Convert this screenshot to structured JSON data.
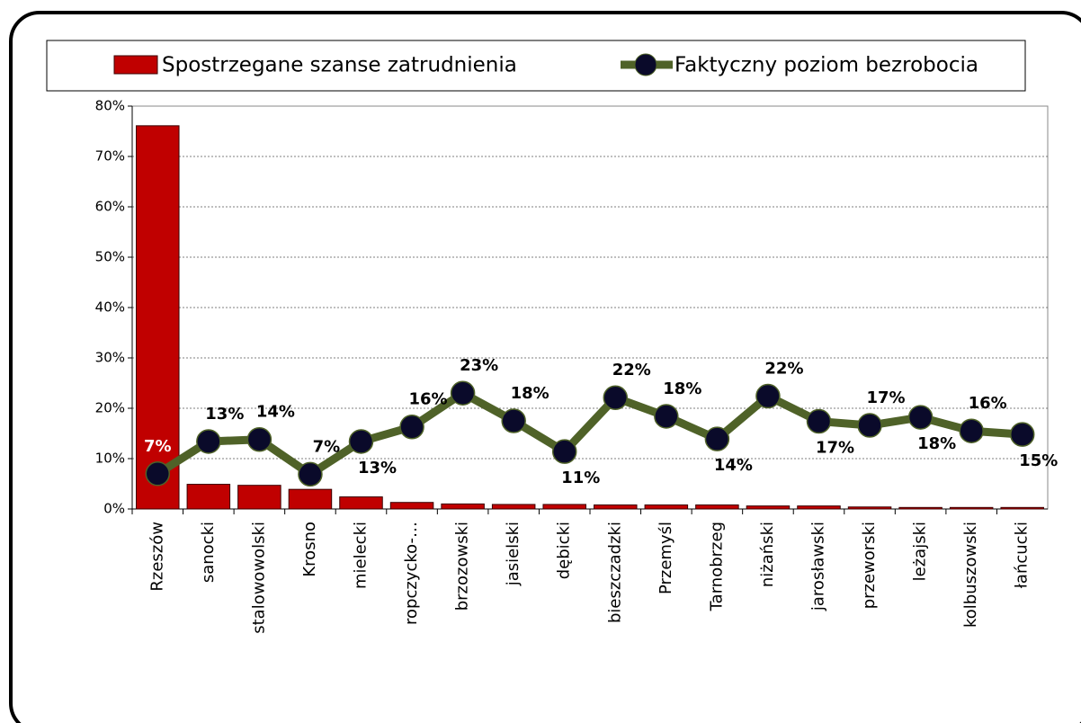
{
  "chart_data": {
    "type": "bar-line",
    "categories": [
      "Rzeszów",
      "sanocki",
      "stalowowolski",
      "Krosno",
      "mielecki",
      "ropczycko-…",
      "brzozowski",
      "jasielski",
      "dębicki",
      "bieszczadzki",
      "Przemyśl",
      "Tarnobrzeg",
      "niżański",
      "jarosławski",
      "przeworski",
      "leżajski",
      "kolbuszowski",
      "łańcucki"
    ],
    "series": [
      {
        "name": "Spostrzegane szanse zatrudnienia",
        "type": "bar",
        "color": "#c00000",
        "values": [
          76.1,
          4.9,
          4.7,
          3.9,
          2.4,
          1.3,
          1.0,
          0.9,
          0.9,
          0.8,
          0.8,
          0.8,
          0.6,
          0.6,
          0.4,
          0.3,
          0.3,
          0.3
        ]
      },
      {
        "name": "Faktyczny poziom bezrobocia",
        "type": "line",
        "color": "#4f6228",
        "marker_color": "#0a0a2a",
        "values": [
          7.0,
          13.4,
          13.8,
          6.9,
          13.4,
          16.3,
          23.0,
          17.5,
          11.4,
          22.1,
          18.4,
          13.9,
          22.4,
          17.4,
          16.6,
          18.2,
          15.5,
          14.8
        ],
        "value_labels": [
          "7%",
          "13%",
          "14%",
          "7%",
          "13%",
          "16%",
          "23%",
          "18%",
          "11%",
          "22%",
          "18%",
          "14%",
          "22%",
          "17%",
          "17%",
          "18%",
          "16%",
          "15%"
        ]
      }
    ],
    "ylim": [
      0,
      80
    ],
    "yticks": [
      {
        "value": 0,
        "label": "0%"
      },
      {
        "value": 10,
        "label": "10%"
      },
      {
        "value": 20,
        "label": "20%"
      },
      {
        "value": 30,
        "label": "30%"
      },
      {
        "value": 40,
        "label": "40%"
      },
      {
        "value": 50,
        "label": "50%"
      },
      {
        "value": 60,
        "label": "60%"
      },
      {
        "value": 70,
        "label": "70%"
      },
      {
        "value": 80,
        "label": "80%"
      }
    ],
    "grid": true,
    "legend": "top"
  }
}
